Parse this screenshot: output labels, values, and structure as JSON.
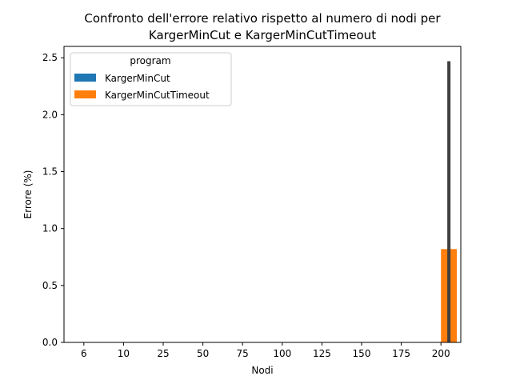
{
  "chart_data": {
    "type": "bar",
    "title_lines": [
      "Confronto dell'errore relativo rispetto al numero di nodi per",
      "KargerMinCut e KargerMinCutTimeout"
    ],
    "xlabel": "Nodi",
    "ylabel": "Errore (%)",
    "categories": [
      "6",
      "10",
      "25",
      "50",
      "75",
      "100",
      "125",
      "150",
      "175",
      "200"
    ],
    "ylim": [
      0,
      2.6
    ],
    "yticks": [
      "0.0",
      "0.5",
      "1.0",
      "1.5",
      "2.0",
      "2.5"
    ],
    "ytick_values": [
      0,
      0.5,
      1.0,
      1.5,
      2.0,
      2.5
    ],
    "legend": {
      "title": "program",
      "placement": "top-left"
    },
    "series": [
      {
        "name": "KargerMinCut",
        "color": "#1f77b4",
        "values": [
          0,
          0,
          0,
          0,
          0,
          0,
          0,
          0,
          0,
          0
        ]
      },
      {
        "name": "KargerMinCutTimeout",
        "color": "#ff7f0e",
        "values": [
          0,
          0,
          0,
          0,
          0,
          0,
          0,
          0,
          0,
          0.82
        ],
        "error_bars": [
          null,
          null,
          null,
          null,
          null,
          null,
          null,
          null,
          null,
          [
            0,
            2.47
          ]
        ]
      }
    ],
    "error_bar_color": "#3f3f3f",
    "grid": false
  }
}
